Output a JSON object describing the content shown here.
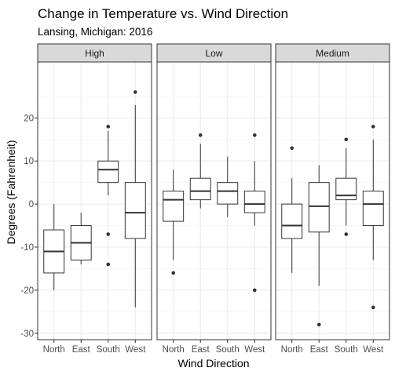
{
  "chart_data": {
    "type": "boxplot",
    "title": "Change in Temperature vs. Wind Direction",
    "subtitle": "Lansing, Michigan: 2016",
    "xlabel": "Wind Direction",
    "ylabel": "Degrees (Fahrenheit)",
    "categories": [
      "North",
      "East",
      "South",
      "West"
    ],
    "ylim": [
      -31.5,
      33
    ],
    "yticks": [
      -30,
      -20,
      -10,
      0,
      10,
      20
    ],
    "grid": true,
    "facets": [
      {
        "label": "High",
        "boxes": [
          {
            "category": "North",
            "lower_whisker": -20,
            "q1": -16,
            "median": -11,
            "q3": -6,
            "upper_whisker": 0,
            "outliers": []
          },
          {
            "category": "East",
            "lower_whisker": -14,
            "q1": -13,
            "median": -9,
            "q3": -5,
            "upper_whisker": -2,
            "outliers": []
          },
          {
            "category": "South",
            "lower_whisker": 2,
            "q1": 5,
            "median": 8,
            "q3": 10,
            "upper_whisker": 17,
            "outliers": [
              18,
              -7,
              -14
            ]
          },
          {
            "category": "West",
            "lower_whisker": -24,
            "q1": -8,
            "median": -2,
            "q3": 5,
            "upper_whisker": 23,
            "outliers": [
              26
            ]
          }
        ]
      },
      {
        "label": "Low",
        "boxes": [
          {
            "category": "North",
            "lower_whisker": -13,
            "q1": -4,
            "median": 1,
            "q3": 3,
            "upper_whisker": 8,
            "outliers": [
              -16
            ]
          },
          {
            "category": "East",
            "lower_whisker": -1,
            "q1": 1,
            "median": 3,
            "q3": 6,
            "upper_whisker": 14,
            "outliers": [
              16
            ]
          },
          {
            "category": "South",
            "lower_whisker": -3,
            "q1": 0,
            "median": 3,
            "q3": 5,
            "upper_whisker": 11,
            "outliers": []
          },
          {
            "category": "West",
            "lower_whisker": -5,
            "q1": -2,
            "median": 0,
            "q3": 3,
            "upper_whisker": 10,
            "outliers": [
              16,
              -20
            ]
          }
        ]
      },
      {
        "label": "Medium",
        "boxes": [
          {
            "category": "North",
            "lower_whisker": -16,
            "q1": -8,
            "median": -5,
            "q3": 0,
            "upper_whisker": 6,
            "outliers": [
              13
            ]
          },
          {
            "category": "East",
            "lower_whisker": -19,
            "q1": -6.5,
            "median": -0.5,
            "q3": 5,
            "upper_whisker": 9,
            "outliers": [
              -28
            ]
          },
          {
            "category": "South",
            "lower_whisker": -5,
            "q1": 1,
            "median": 2,
            "q3": 6,
            "upper_whisker": 13,
            "outliers": [
              15,
              -7
            ]
          },
          {
            "category": "West",
            "lower_whisker": -13,
            "q1": -5,
            "median": 0,
            "q3": 3,
            "upper_whisker": 15,
            "outliers": [
              18,
              -24
            ]
          }
        ]
      }
    ]
  },
  "colors": {
    "panel_border": "#333333",
    "strip_fill": "#d9d9d9",
    "grid_major": "#ebebeb",
    "grid_minor": "#f5f5f5",
    "box_stroke": "#333333",
    "outlier": "#333333"
  }
}
